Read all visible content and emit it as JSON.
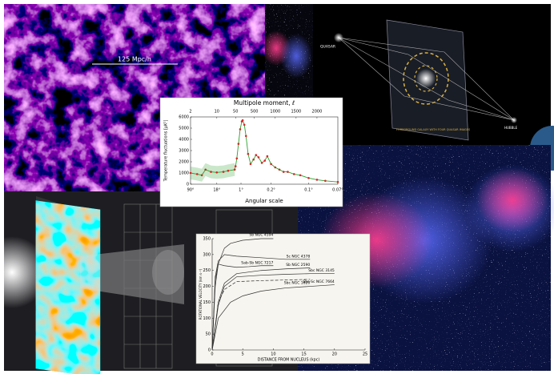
{
  "cosmic_web": {
    "scale_label": "125 Mpc/h"
  },
  "lensing": {
    "source_label": "QUASAR",
    "lens_label": "FOREGROUND GALAXY WITH FOUR QUASAR IMAGES",
    "observer_label": "HUBBLE"
  },
  "cmb_spectrum": {
    "type": "scatter",
    "top_axis_label": "Multipole moment, ℓ",
    "y_axis_label": "Temperature fluctuations [μK²]",
    "x_axis_label": "Angular scale",
    "xlim": [
      2,
      2500
    ],
    "ylim": [
      0,
      6000
    ],
    "xticks_top": [
      2,
      10,
      50,
      500,
      1000,
      1500,
      2000
    ],
    "xticks_bottom": [
      {
        "value": 2,
        "label": "90°"
      },
      {
        "value": 10,
        "label": "18°"
      },
      {
        "value": 180,
        "label": "1°"
      },
      {
        "value": 900,
        "label": "0.2°"
      },
      {
        "value": 1800,
        "label": "0.1°"
      },
      {
        "value": 2500,
        "label": "0.07°"
      }
    ],
    "yticks": [
      0,
      1000,
      2000,
      3000,
      4000,
      5000,
      6000
    ],
    "point_color": "#d62728",
    "fit_color": "#2ca02c",
    "x": [
      2,
      3,
      4,
      5,
      7,
      10,
      15,
      20,
      30,
      50,
      80,
      120,
      160,
      200,
      220,
      260,
      300,
      350,
      410,
      480,
      540,
      600,
      680,
      750,
      810,
      900,
      1000,
      1100,
      1200,
      1300,
      1450,
      1600,
      1800,
      2000,
      2200,
      2500
    ],
    "values": [
      1000,
      900,
      800,
      1300,
      1100,
      1050,
      1100,
      1200,
      1300,
      1600,
      2300,
      3600,
      4900,
      5600,
      5700,
      5300,
      4300,
      2700,
      1800,
      2200,
      2600,
      2400,
      1900,
      2100,
      2500,
      1800,
      1500,
      1300,
      1100,
      1100,
      900,
      800,
      550,
      400,
      300,
      200
    ]
  },
  "rotation_curves": {
    "type": "line",
    "y_axis_label": "ROTATIONAL VELOCITY (km s⁻¹)",
    "x_axis_label": "DISTANCE FROM NUCLEUS (kpc)",
    "xlim": [
      0,
      25
    ],
    "ylim": [
      0,
      350
    ],
    "xticks": [
      0,
      5,
      10,
      15,
      20,
      25
    ],
    "yticks": [
      0,
      50,
      100,
      150,
      200,
      250,
      300,
      350
    ],
    "series": [
      {
        "name": "Sb NGC 4594",
        "x": [
          0,
          0.5,
          1,
          2,
          3,
          5,
          8,
          10
        ],
        "values": [
          0,
          200,
          270,
          320,
          335,
          345,
          350,
          350
        ]
      },
      {
        "name": "Sc NGC 4378",
        "x": [
          0,
          0.5,
          1,
          2,
          4,
          8,
          12,
          16
        ],
        "values": [
          0,
          230,
          280,
          300,
          295,
          290,
          285,
          285
        ]
      },
      {
        "name": "Sab-Sb NGC 7217",
        "x": [
          0,
          0.5,
          1,
          2,
          4,
          6,
          8,
          10
        ],
        "values": [
          0,
          220,
          270,
          265,
          260,
          262,
          265,
          265
        ]
      },
      {
        "name": "Sb NGC 2590",
        "x": [
          0,
          1,
          2,
          4,
          8,
          12,
          16
        ],
        "values": [
          0,
          150,
          210,
          240,
          250,
          255,
          258
        ]
      },
      {
        "name": "Sbc NGC 3145",
        "x": [
          0,
          1,
          2,
          4,
          8,
          12,
          16,
          20
        ],
        "values": [
          0,
          140,
          200,
          230,
          235,
          238,
          240,
          240
        ]
      },
      {
        "name": "Sbc NGC 1620",
        "x": [
          0,
          1,
          2,
          4,
          8,
          12,
          16
        ],
        "values": [
          0,
          150,
          190,
          215,
          218,
          220,
          222
        ]
      },
      {
        "name": "Sbc-Sc NGC 7664",
        "x": [
          0,
          1,
          3,
          5,
          8,
          12,
          16,
          20
        ],
        "values": [
          0,
          100,
          150,
          170,
          185,
          195,
          200,
          205
        ]
      }
    ]
  }
}
